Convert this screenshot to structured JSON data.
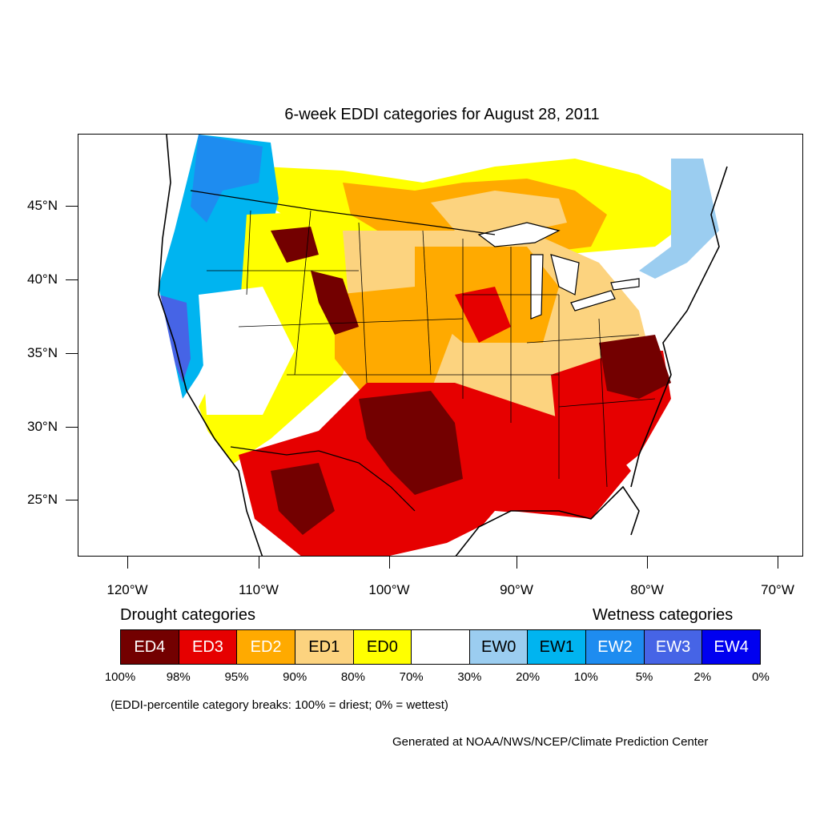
{
  "title": "6-week EDDI categories for August 28, 2011",
  "map": {
    "lat_labels": [
      "45°N",
      "40°N",
      "35°N",
      "30°N",
      "25°N"
    ],
    "lon_labels": [
      "120°W",
      "110°W",
      "100°W",
      "90°W",
      "80°W",
      "70°W"
    ]
  },
  "legend": {
    "drought_heading": "Drought categories",
    "wetness_heading": "Wetness categories",
    "categories": [
      {
        "label": "ED4",
        "color": "#730000",
        "text_color": "#ffffff"
      },
      {
        "label": "ED3",
        "color": "#e60000",
        "text_color": "#ffffff"
      },
      {
        "label": "ED2",
        "color": "#ffaa00",
        "text_color": "#ffffff"
      },
      {
        "label": "ED1",
        "color": "#fcd37f",
        "text_color": "#000000"
      },
      {
        "label": "ED0",
        "color": "#ffff00",
        "text_color": "#000000"
      },
      {
        "label": "",
        "color": "#ffffff",
        "text_color": "#000000"
      },
      {
        "label": "EW0",
        "color": "#9bcdf0",
        "text_color": "#000000"
      },
      {
        "label": "EW1",
        "color": "#00b4f0",
        "text_color": "#000000"
      },
      {
        "label": "EW2",
        "color": "#1e8cf0",
        "text_color": "#ffffff"
      },
      {
        "label": "EW3",
        "color": "#4664e6",
        "text_color": "#ffffff"
      },
      {
        "label": "EW4",
        "color": "#0000f0",
        "text_color": "#ffffff"
      }
    ],
    "breaks": [
      "100%",
      "98%",
      "95%",
      "90%",
      "80%",
      "70%",
      "30%",
      "20%",
      "10%",
      "5%",
      "2%",
      "0%"
    ],
    "note": "(EDDI-percentile category breaks: 100% = driest; 0% = wettest)"
  },
  "credit": "Generated at NOAA/NWS/NCEP/Climate Prediction Center"
}
